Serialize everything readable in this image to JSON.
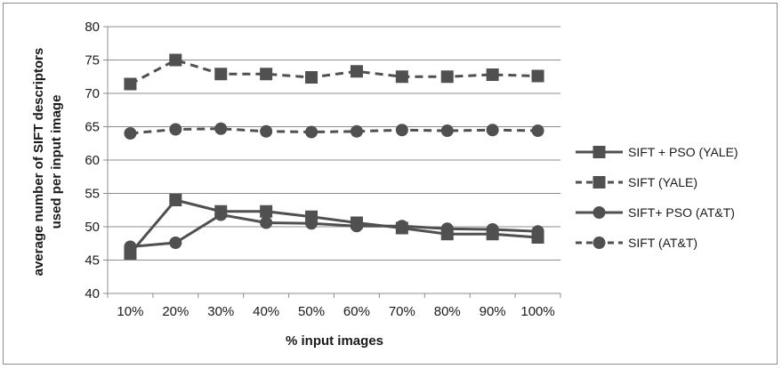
{
  "chart_data": {
    "type": "line",
    "title": "",
    "xlabel": "% input images",
    "ylabel_lines": [
      "average number of SIFT descriptors",
      "used per input image"
    ],
    "categories": [
      "10%",
      "20%",
      "30%",
      "40%",
      "50%",
      "60%",
      "70%",
      "80%",
      "90%",
      "100%"
    ],
    "ylim": [
      40,
      80
    ],
    "yticks": [
      40,
      45,
      50,
      55,
      60,
      65,
      70,
      75,
      80
    ],
    "grid": true,
    "legend_position": "right",
    "series": [
      {
        "name": "SIFT + PSO (YALE)",
        "marker": "square",
        "dashed": false,
        "values": [
          46.0,
          54.0,
          52.3,
          52.3,
          51.5,
          50.6,
          49.8,
          48.9,
          48.9,
          48.4
        ]
      },
      {
        "name": "SIFT (YALE)",
        "marker": "square",
        "dashed": true,
        "values": [
          71.4,
          75.0,
          72.9,
          72.9,
          72.4,
          73.3,
          72.5,
          72.5,
          72.8,
          72.6
        ]
      },
      {
        "name": "SIFT+ PSO (AT&T)",
        "marker": "circle",
        "dashed": false,
        "values": [
          47.0,
          47.6,
          51.8,
          50.6,
          50.5,
          50.1,
          50.1,
          49.7,
          49.6,
          49.3
        ]
      },
      {
        "name": "SIFT (AT&T)",
        "marker": "circle",
        "dashed": true,
        "values": [
          64.0,
          64.6,
          64.7,
          64.3,
          64.2,
          64.3,
          64.5,
          64.4,
          64.5,
          64.4
        ]
      }
    ],
    "colors": {
      "series": "#505050",
      "grid": "#8c8c8c",
      "axis": "#8c8c8c",
      "text": "#1a1a1a"
    }
  }
}
